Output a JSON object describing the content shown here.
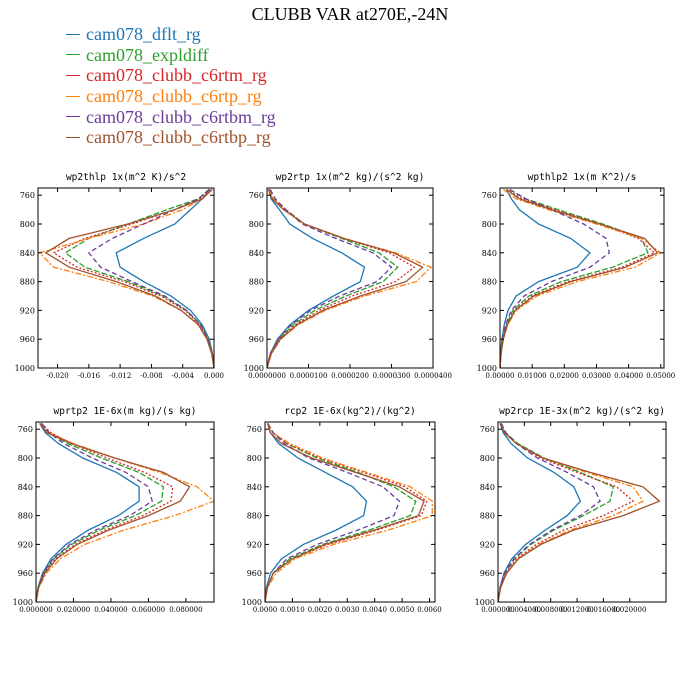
{
  "page_title": "CLUBB VAR at270E,-24N",
  "series": [
    {
      "name": "cam078_dflt_rg",
      "color": "#1f77b4",
      "dash": ""
    },
    {
      "name": "cam078_expldiff",
      "color": "#2ca02c",
      "dash": "6,2"
    },
    {
      "name": "cam078_clubb_c6rtm_rg",
      "color": "#d62728",
      "dash": "2,2"
    },
    {
      "name": "cam078_clubb_c6rtp_rg",
      "color": "#ff7f0e",
      "dash": "6,2,2,2"
    },
    {
      "name": "cam078_clubb_c6rtbm_rg",
      "color": "#6a3d9a",
      "dash": "5,3"
    },
    {
      "name": "cam078_clubb_c6rtbp_rg",
      "color": "#a0522d",
      "dash": ""
    }
  ],
  "chart_data": [
    {
      "type": "line",
      "title": "wp2thlp  1x(m^2 K)/s^2",
      "xlim": [
        -0.0225,
        0.0
      ],
      "ylim": [
        1000,
        750
      ],
      "xticks": [
        "-0.020",
        "-0.016",
        "-0.012",
        "-0.008",
        "-0.004",
        "0.000"
      ],
      "xtick_values": [
        -0.02,
        -0.016,
        -0.012,
        -0.008,
        -0.004,
        0.0
      ],
      "yticks": [
        "760",
        "800",
        "840",
        "880",
        "920",
        "960",
        "1000"
      ],
      "y": [
        752,
        765,
        780,
        800,
        820,
        840,
        860,
        880,
        900,
        920,
        940,
        960,
        980,
        1000
      ],
      "series": [
        [
          -0.0005,
          -0.0015,
          -0.003,
          -0.005,
          -0.009,
          -0.0125,
          -0.012,
          -0.009,
          -0.0055,
          -0.003,
          -0.0015,
          -0.0006,
          -0.0002,
          0.0
        ],
        [
          -0.0006,
          -0.002,
          -0.006,
          -0.011,
          -0.016,
          -0.019,
          -0.0165,
          -0.011,
          -0.0065,
          -0.0035,
          -0.0017,
          -0.0007,
          -0.0002,
          0.0
        ],
        [
          -0.0005,
          -0.0018,
          -0.005,
          -0.0105,
          -0.0165,
          -0.0205,
          -0.0175,
          -0.0115,
          -0.0068,
          -0.0037,
          -0.0018,
          -0.0008,
          -0.0002,
          0.0
        ],
        [
          -0.0003,
          -0.0015,
          -0.004,
          -0.009,
          -0.016,
          -0.0223,
          -0.0205,
          -0.0135,
          -0.0078,
          -0.0042,
          -0.002,
          -0.0009,
          -0.0003,
          0.0
        ],
        [
          -0.0006,
          -0.002,
          -0.005,
          -0.009,
          -0.013,
          -0.016,
          -0.0145,
          -0.0105,
          -0.0063,
          -0.0035,
          -0.0017,
          -0.0008,
          -0.0002,
          0.0
        ],
        [
          -0.0002,
          -0.0015,
          -0.005,
          -0.011,
          -0.0185,
          -0.0215,
          -0.0185,
          -0.0125,
          -0.0075,
          -0.0042,
          -0.002,
          -0.0009,
          -0.0003,
          0.0
        ]
      ]
    },
    {
      "type": "line",
      "title": "wp2rtp  1x(m^2 kg)/(s^2 kg)",
      "xlim": [
        0.0,
        4e-05
      ],
      "ylim": [
        1000,
        750
      ],
      "xticks": [
        "0.0000000",
        "0.0000100",
        "0.0000200",
        "0.0000300",
        "0.0000400"
      ],
      "xtick_values": [
        0.0,
        1e-05,
        2e-05,
        3e-05,
        4e-05
      ],
      "yticks": [
        "760",
        "800",
        "840",
        "880",
        "920",
        "960",
        "1000"
      ],
      "y": [
        752,
        765,
        780,
        800,
        820,
        840,
        860,
        880,
        900,
        920,
        940,
        960,
        980,
        1000
      ],
      "series": [
        [
          5e-07,
          1e-06,
          3e-06,
          5.5e-06,
          1.1e-05,
          1.8e-05,
          2.35e-05,
          2.25e-05,
          1.6e-05,
          1e-05,
          5.5e-06,
          2.5e-06,
          8e-07,
          0.0
        ],
        [
          6e-07,
          1.5e-06,
          4.5e-06,
          9e-06,
          1.8e-05,
          2.7e-05,
          3.15e-05,
          2.8e-05,
          1.9e-05,
          1.15e-05,
          6.3e-06,
          2.8e-06,
          9e-07,
          0.0
        ],
        [
          5e-07,
          1.5e-06,
          4.5e-06,
          9e-06,
          1.85e-05,
          2.95e-05,
          3.55e-05,
          3.1e-05,
          2.05e-05,
          1.25e-05,
          6.8e-06,
          3e-06,
          1e-06,
          0.0
        ],
        [
          4e-07,
          1.5e-06,
          4e-06,
          9e-06,
          1.85e-05,
          3.1e-05,
          3.95e-05,
          3.6e-05,
          2.35e-05,
          1.4e-05,
          7.5e-06,
          3.3e-06,
          1.1e-06,
          0.0
        ],
        [
          8e-07,
          2e-06,
          4.5e-06,
          8.5e-06,
          1.65e-05,
          2.55e-05,
          3e-05,
          2.65e-05,
          1.75e-05,
          1.05e-05,
          5.8e-06,
          2.6e-06,
          8e-07,
          0.0
        ],
        [
          3e-07,
          1.2e-06,
          4e-06,
          9e-06,
          1.85e-05,
          3.05e-05,
          3.75e-05,
          3.35e-05,
          2.25e-05,
          1.35e-05,
          7.2e-06,
          3.2e-06,
          1e-06,
          0.0
        ]
      ]
    },
    {
      "type": "line",
      "title": "wpthlp2  1x(m K^2)/s",
      "xlim": [
        0.0,
        0.051
      ],
      "ylim": [
        1000,
        750
      ],
      "xticks": [
        "0.00000",
        "0.01000",
        "0.02000",
        "0.03000",
        "0.04000",
        "0.05000"
      ],
      "xtick_values": [
        0.0,
        0.01,
        0.02,
        0.03,
        0.04,
        0.05
      ],
      "yticks": [
        "760",
        "800",
        "840",
        "880",
        "920",
        "960",
        "1000"
      ],
      "y": [
        752,
        765,
        780,
        800,
        820,
        840,
        860,
        880,
        900,
        920,
        940,
        960,
        980,
        1000
      ],
      "series": [
        [
          0.002,
          0.0035,
          0.006,
          0.012,
          0.022,
          0.028,
          0.024,
          0.012,
          0.005,
          0.0025,
          0.0013,
          0.0006,
          0.0002,
          0.0
        ],
        [
          0.003,
          0.008,
          0.018,
          0.032,
          0.044,
          0.046,
          0.035,
          0.019,
          0.009,
          0.004,
          0.002,
          0.0009,
          0.0003,
          0.0
        ],
        [
          0.002,
          0.007,
          0.017,
          0.031,
          0.043,
          0.048,
          0.038,
          0.021,
          0.01,
          0.0045,
          0.0022,
          0.001,
          0.0003,
          0.0
        ],
        [
          0.001,
          0.005,
          0.015,
          0.03,
          0.044,
          0.05,
          0.042,
          0.024,
          0.0115,
          0.005,
          0.0024,
          0.0011,
          0.0003,
          0.0
        ],
        [
          0.003,
          0.008,
          0.016,
          0.026,
          0.033,
          0.034,
          0.028,
          0.016,
          0.0075,
          0.0035,
          0.0017,
          0.0008,
          0.0002,
          0.0
        ],
        [
          0.002,
          0.006,
          0.016,
          0.031,
          0.045,
          0.049,
          0.039,
          0.022,
          0.0105,
          0.0047,
          0.0023,
          0.001,
          0.0003,
          0.0
        ]
      ]
    },
    {
      "type": "line",
      "title": "wprtp2  1E-6x(m kg)/(s kg)",
      "xlim": [
        0.0,
        0.095
      ],
      "ylim": [
        1000,
        750
      ],
      "xticks": [
        "0.000000",
        "0.020000",
        "0.040000",
        "0.060000",
        "0.080000"
      ],
      "xtick_values": [
        0.0,
        0.02,
        0.04,
        0.06,
        0.08
      ],
      "yticks": [
        "760",
        "800",
        "840",
        "880",
        "920",
        "960",
        "1000"
      ],
      "y": [
        752,
        765,
        780,
        800,
        820,
        840,
        860,
        880,
        900,
        920,
        940,
        960,
        980,
        1000
      ],
      "series": [
        [
          0.002,
          0.005,
          0.012,
          0.025,
          0.043,
          0.055,
          0.055,
          0.044,
          0.028,
          0.016,
          0.008,
          0.0035,
          0.001,
          0.0
        ],
        [
          0.003,
          0.007,
          0.017,
          0.035,
          0.055,
          0.068,
          0.067,
          0.053,
          0.034,
          0.019,
          0.0095,
          0.004,
          0.0012,
          0.0
        ],
        [
          0.003,
          0.008,
          0.019,
          0.038,
          0.058,
          0.073,
          0.072,
          0.057,
          0.037,
          0.021,
          0.0105,
          0.0045,
          0.0013,
          0.0
        ],
        [
          0.002,
          0.007,
          0.02,
          0.042,
          0.066,
          0.086,
          0.095,
          0.074,
          0.047,
          0.026,
          0.013,
          0.0055,
          0.0015,
          0.0
        ],
        [
          0.003,
          0.007,
          0.015,
          0.03,
          0.048,
          0.06,
          0.062,
          0.05,
          0.032,
          0.018,
          0.009,
          0.0038,
          0.0011,
          0.0
        ],
        [
          0.002,
          0.006,
          0.019,
          0.042,
          0.068,
          0.082,
          0.077,
          0.06,
          0.039,
          0.022,
          0.011,
          0.0047,
          0.0014,
          0.0
        ]
      ]
    },
    {
      "type": "line",
      "title": "rcp2  1E-6x(kg^2)/(kg^2)",
      "xlim": [
        0.0,
        0.0062
      ],
      "ylim": [
        1000,
        750
      ],
      "xticks": [
        "0.0000",
        "0.0010",
        "0.0020",
        "0.0030",
        "0.0040",
        "0.0050",
        "0.0060"
      ],
      "xtick_values": [
        0.0,
        0.001,
        0.002,
        0.003,
        0.004,
        0.005,
        0.006
      ],
      "yticks": [
        "760",
        "800",
        "840",
        "880",
        "920",
        "960",
        "1000"
      ],
      "y": [
        752,
        765,
        780,
        800,
        820,
        840,
        860,
        880,
        900,
        920,
        940,
        960,
        980,
        1000
      ],
      "series": [
        [
          0.0001,
          0.0002,
          0.0005,
          0.0012,
          0.0022,
          0.0032,
          0.0037,
          0.0036,
          0.0026,
          0.0014,
          0.0006,
          0.0002,
          5e-05,
          0.0
        ],
        [
          0.0001,
          0.0003,
          0.0008,
          0.0019,
          0.0034,
          0.0047,
          0.0055,
          0.0053,
          0.0038,
          0.0021,
          0.0009,
          0.0003,
          8e-05,
          0.0
        ],
        [
          0.0001,
          0.0003,
          0.0008,
          0.002,
          0.0036,
          0.0051,
          0.0059,
          0.0057,
          0.0041,
          0.0023,
          0.001,
          0.0003,
          9e-05,
          0.0
        ],
        [
          0.0001,
          0.0003,
          0.0009,
          0.0021,
          0.0037,
          0.0053,
          0.0061,
          0.0061,
          0.0045,
          0.0025,
          0.0011,
          0.0004,
          0.0001,
          0.0
        ],
        [
          0.0001,
          0.0003,
          0.0007,
          0.0016,
          0.003,
          0.0043,
          0.0049,
          0.0047,
          0.0034,
          0.0019,
          0.0008,
          0.0003,
          7e-05,
          0.0
        ],
        [
          0.0001,
          0.0002,
          0.0006,
          0.0017,
          0.0033,
          0.0049,
          0.0058,
          0.0056,
          0.004,
          0.0022,
          0.001,
          0.0003,
          8e-05,
          0.0
        ]
      ]
    },
    {
      "type": "line",
      "title": "wp2rcp  1E-3x(m^2 kg)/(s^2 kg)",
      "xlim": [
        0.0,
        0.0255
      ],
      "ylim": [
        1000,
        750
      ],
      "xticks": [
        "0.000000",
        "0.004000",
        "0.008000",
        "0.012000",
        "0.016000",
        "0.020000"
      ],
      "xtick_values": [
        0.0,
        0.004,
        0.008,
        0.012,
        0.016,
        0.02
      ],
      "yticks": [
        "760",
        "800",
        "840",
        "880",
        "920",
        "960",
        "1000"
      ],
      "y": [
        752,
        765,
        780,
        800,
        820,
        840,
        860,
        880,
        900,
        920,
        940,
        960,
        980,
        1000
      ],
      "series": [
        [
          0.0003,
          0.0008,
          0.002,
          0.0045,
          0.0085,
          0.0115,
          0.0125,
          0.0105,
          0.0072,
          0.0042,
          0.0021,
          0.0009,
          0.0003,
          0.0
        ],
        [
          0.0004,
          0.0012,
          0.003,
          0.007,
          0.0125,
          0.0175,
          0.017,
          0.013,
          0.0085,
          0.005,
          0.0025,
          0.0011,
          0.0003,
          0.0
        ],
        [
          0.0004,
          0.0011,
          0.0028,
          0.0065,
          0.012,
          0.018,
          0.0205,
          0.016,
          0.01,
          0.0058,
          0.0028,
          0.0012,
          0.0004,
          0.0
        ],
        [
          0.0003,
          0.001,
          0.0028,
          0.0068,
          0.0135,
          0.0205,
          0.022,
          0.0175,
          0.011,
          0.0062,
          0.003,
          0.0013,
          0.0004,
          0.0
        ],
        [
          0.0005,
          0.0012,
          0.0028,
          0.006,
          0.0105,
          0.0145,
          0.0155,
          0.0125,
          0.0082,
          0.0048,
          0.0024,
          0.001,
          0.0003,
          0.0
        ],
        [
          0.0003,
          0.001,
          0.0028,
          0.0068,
          0.014,
          0.022,
          0.0245,
          0.019,
          0.0115,
          0.0065,
          0.0031,
          0.0013,
          0.0004,
          0.0
        ]
      ]
    }
  ]
}
